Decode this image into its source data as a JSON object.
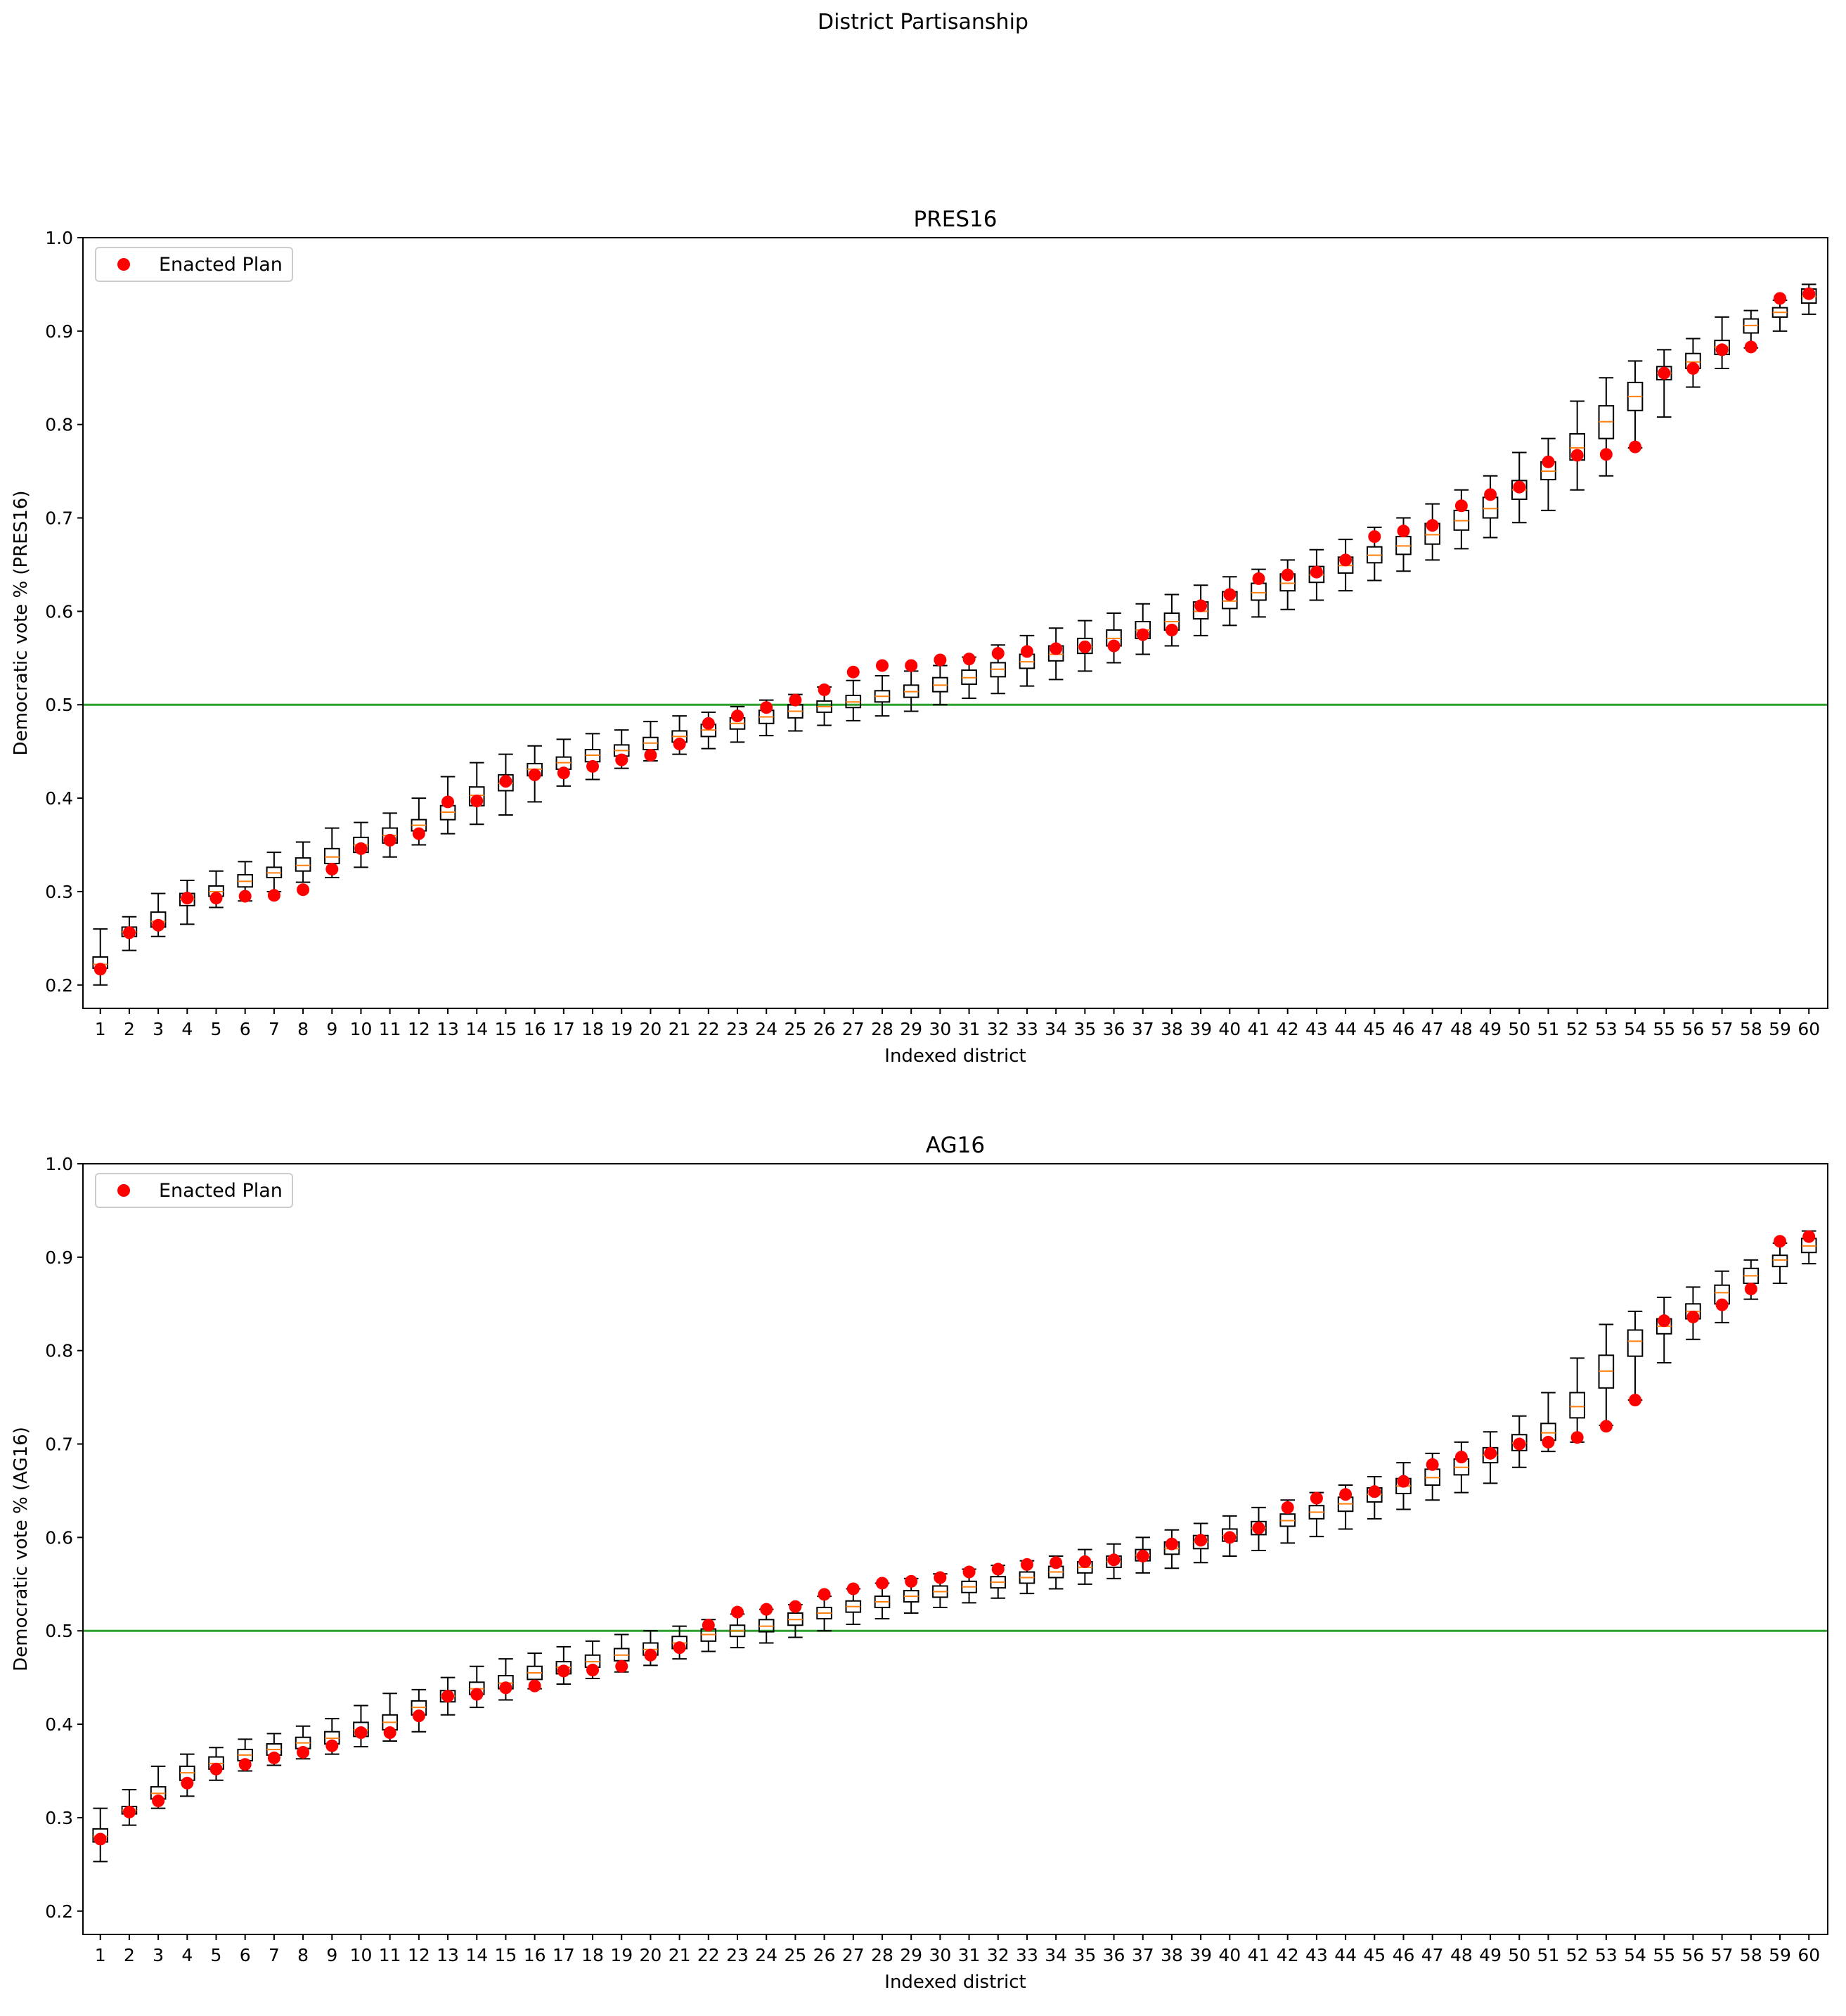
{
  "figure": {
    "title": "District Partisanship"
  },
  "chart_data": [
    {
      "type": "box",
      "title": "PRES16",
      "xlabel": "Indexed district",
      "ylabel": "Democratic vote % (PRES16)",
      "ylim": [
        0.175,
        1.0
      ],
      "yticks": [
        0.2,
        0.3,
        0.4,
        0.5,
        0.6,
        0.7,
        0.8,
        0.9,
        1.0
      ],
      "ytick_labels": [
        "0.2",
        "0.3",
        "0.4",
        "0.5",
        "0.6",
        "0.7",
        "0.8",
        "0.9",
        "1.0"
      ],
      "reference_line": {
        "y": 0.5,
        "color": "#2ca02c"
      },
      "legend": {
        "label": "Enacted Plan",
        "placement": "upper-left",
        "color": "#ff0000"
      },
      "categories": [
        "1",
        "2",
        "3",
        "4",
        "5",
        "6",
        "7",
        "8",
        "9",
        "10",
        "11",
        "12",
        "13",
        "14",
        "15",
        "16",
        "17",
        "18",
        "19",
        "20",
        "21",
        "22",
        "23",
        "24",
        "25",
        "26",
        "27",
        "28",
        "29",
        "30",
        "31",
        "32",
        "33",
        "34",
        "35",
        "36",
        "37",
        "38",
        "39",
        "40",
        "41",
        "42",
        "43",
        "44",
        "45",
        "46",
        "47",
        "48",
        "49",
        "50",
        "51",
        "52",
        "53",
        "54",
        "55",
        "56",
        "57",
        "58",
        "59",
        "60"
      ],
      "boxes": [
        [
          0.2,
          0.218,
          0.222,
          0.23,
          0.26
        ],
        [
          0.237,
          0.252,
          0.257,
          0.262,
          0.273
        ],
        [
          0.252,
          0.262,
          0.268,
          0.278,
          0.298
        ],
        [
          0.265,
          0.285,
          0.292,
          0.298,
          0.312
        ],
        [
          0.283,
          0.295,
          0.3,
          0.306,
          0.322
        ],
        [
          0.29,
          0.305,
          0.311,
          0.318,
          0.332
        ],
        [
          0.3,
          0.315,
          0.32,
          0.326,
          0.342
        ],
        [
          0.31,
          0.322,
          0.328,
          0.336,
          0.353
        ],
        [
          0.315,
          0.33,
          0.337,
          0.346,
          0.368
        ],
        [
          0.326,
          0.342,
          0.35,
          0.358,
          0.374
        ],
        [
          0.337,
          0.352,
          0.36,
          0.368,
          0.384
        ],
        [
          0.35,
          0.365,
          0.371,
          0.377,
          0.4
        ],
        [
          0.362,
          0.377,
          0.385,
          0.392,
          0.423
        ],
        [
          0.372,
          0.392,
          0.403,
          0.412,
          0.438
        ],
        [
          0.382,
          0.408,
          0.416,
          0.425,
          0.447
        ],
        [
          0.396,
          0.424,
          0.431,
          0.437,
          0.456
        ],
        [
          0.413,
          0.431,
          0.438,
          0.444,
          0.463
        ],
        [
          0.42,
          0.439,
          0.446,
          0.452,
          0.469
        ],
        [
          0.432,
          0.445,
          0.451,
          0.457,
          0.473
        ],
        [
          0.44,
          0.452,
          0.459,
          0.465,
          0.482
        ],
        [
          0.447,
          0.46,
          0.466,
          0.472,
          0.488
        ],
        [
          0.453,
          0.466,
          0.473,
          0.479,
          0.492
        ],
        [
          0.46,
          0.474,
          0.48,
          0.486,
          0.498
        ],
        [
          0.467,
          0.48,
          0.487,
          0.494,
          0.505
        ],
        [
          0.472,
          0.486,
          0.493,
          0.5,
          0.511
        ],
        [
          0.478,
          0.492,
          0.498,
          0.504,
          0.519
        ],
        [
          0.483,
          0.497,
          0.503,
          0.51,
          0.526
        ],
        [
          0.488,
          0.503,
          0.509,
          0.515,
          0.531
        ],
        [
          0.493,
          0.508,
          0.514,
          0.521,
          0.536
        ],
        [
          0.5,
          0.514,
          0.521,
          0.529,
          0.542
        ],
        [
          0.507,
          0.522,
          0.529,
          0.537,
          0.551
        ],
        [
          0.512,
          0.53,
          0.538,
          0.545,
          0.564
        ],
        [
          0.52,
          0.539,
          0.546,
          0.554,
          0.574
        ],
        [
          0.527,
          0.547,
          0.554,
          0.563,
          0.582
        ],
        [
          0.536,
          0.555,
          0.562,
          0.571,
          0.59
        ],
        [
          0.545,
          0.563,
          0.571,
          0.58,
          0.598
        ],
        [
          0.554,
          0.571,
          0.58,
          0.589,
          0.608
        ],
        [
          0.563,
          0.58,
          0.589,
          0.598,
          0.618
        ],
        [
          0.574,
          0.592,
          0.6,
          0.61,
          0.628
        ],
        [
          0.585,
          0.603,
          0.611,
          0.621,
          0.637
        ],
        [
          0.594,
          0.612,
          0.62,
          0.63,
          0.645
        ],
        [
          0.602,
          0.622,
          0.63,
          0.64,
          0.655
        ],
        [
          0.612,
          0.631,
          0.639,
          0.648,
          0.666
        ],
        [
          0.622,
          0.641,
          0.649,
          0.658,
          0.677
        ],
        [
          0.633,
          0.652,
          0.66,
          0.669,
          0.69
        ],
        [
          0.643,
          0.661,
          0.67,
          0.68,
          0.7
        ],
        [
          0.655,
          0.672,
          0.682,
          0.694,
          0.715
        ],
        [
          0.667,
          0.687,
          0.697,
          0.708,
          0.73
        ],
        [
          0.679,
          0.7,
          0.71,
          0.722,
          0.745
        ],
        [
          0.695,
          0.72,
          0.73,
          0.74,
          0.77
        ],
        [
          0.708,
          0.741,
          0.75,
          0.76,
          0.785
        ],
        [
          0.73,
          0.762,
          0.775,
          0.79,
          0.825
        ],
        [
          0.745,
          0.785,
          0.803,
          0.82,
          0.85
        ],
        [
          0.775,
          0.815,
          0.83,
          0.845,
          0.868
        ],
        [
          0.808,
          0.848,
          0.855,
          0.862,
          0.88
        ],
        [
          0.84,
          0.86,
          0.867,
          0.876,
          0.892
        ],
        [
          0.86,
          0.875,
          0.883,
          0.89,
          0.915
        ],
        [
          0.882,
          0.898,
          0.906,
          0.913,
          0.922
        ],
        [
          0.9,
          0.915,
          0.92,
          0.925,
          0.933
        ],
        [
          0.918,
          0.93,
          0.937,
          0.945,
          0.95
        ]
      ],
      "series": [
        {
          "name": "Enacted Plan",
          "values": [
            0.217,
            0.256,
            0.264,
            0.293,
            0.293,
            0.295,
            0.296,
            0.302,
            0.324,
            0.346,
            0.355,
            0.362,
            0.396,
            0.397,
            0.418,
            0.425,
            0.427,
            0.434,
            0.441,
            0.446,
            0.458,
            0.48,
            0.488,
            0.497,
            0.505,
            0.516,
            0.535,
            0.542,
            0.542,
            0.548,
            0.549,
            0.555,
            0.557,
            0.56,
            0.562,
            0.563,
            0.575,
            0.58,
            0.606,
            0.618,
            0.635,
            0.639,
            0.642,
            0.655,
            0.68,
            0.686,
            0.692,
            0.713,
            0.725,
            0.733,
            0.76,
            0.767,
            0.768,
            0.776,
            0.855,
            0.86,
            0.88,
            0.883,
            0.935,
            0.94
          ]
        }
      ]
    },
    {
      "type": "box",
      "title": "AG16",
      "xlabel": "Indexed district",
      "ylabel": "Democratic vote % (AG16)",
      "ylim": [
        0.175,
        1.0
      ],
      "yticks": [
        0.2,
        0.3,
        0.4,
        0.5,
        0.6,
        0.7,
        0.8,
        0.9,
        1.0
      ],
      "ytick_labels": [
        "0.2",
        "0.3",
        "0.4",
        "0.5",
        "0.6",
        "0.7",
        "0.8",
        "0.9",
        "1.0"
      ],
      "reference_line": {
        "y": 0.5,
        "color": "#2ca02c"
      },
      "legend": {
        "label": "Enacted Plan",
        "placement": "upper-left",
        "color": "#ff0000"
      },
      "categories": [
        "1",
        "2",
        "3",
        "4",
        "5",
        "6",
        "7",
        "8",
        "9",
        "10",
        "11",
        "12",
        "13",
        "14",
        "15",
        "16",
        "17",
        "18",
        "19",
        "20",
        "21",
        "22",
        "23",
        "24",
        "25",
        "26",
        "27",
        "28",
        "29",
        "30",
        "31",
        "32",
        "33",
        "34",
        "35",
        "36",
        "37",
        "38",
        "39",
        "40",
        "41",
        "42",
        "43",
        "44",
        "45",
        "46",
        "47",
        "48",
        "49",
        "50",
        "51",
        "52",
        "53",
        "54",
        "55",
        "56",
        "57",
        "58",
        "59",
        "60"
      ],
      "boxes": [
        [
          0.253,
          0.274,
          0.28,
          0.288,
          0.31
        ],
        [
          0.292,
          0.304,
          0.308,
          0.312,
          0.33
        ],
        [
          0.31,
          0.32,
          0.326,
          0.333,
          0.355
        ],
        [
          0.323,
          0.34,
          0.348,
          0.355,
          0.368
        ],
        [
          0.34,
          0.352,
          0.358,
          0.365,
          0.375
        ],
        [
          0.35,
          0.361,
          0.367,
          0.373,
          0.384
        ],
        [
          0.356,
          0.367,
          0.373,
          0.379,
          0.39
        ],
        [
          0.363,
          0.374,
          0.38,
          0.386,
          0.398
        ],
        [
          0.368,
          0.379,
          0.385,
          0.392,
          0.406
        ],
        [
          0.376,
          0.387,
          0.394,
          0.402,
          0.42
        ],
        [
          0.382,
          0.394,
          0.402,
          0.41,
          0.433
        ],
        [
          0.392,
          0.41,
          0.418,
          0.425,
          0.437
        ],
        [
          0.41,
          0.424,
          0.43,
          0.436,
          0.45
        ],
        [
          0.418,
          0.432,
          0.438,
          0.445,
          0.462
        ],
        [
          0.426,
          0.438,
          0.444,
          0.452,
          0.47
        ],
        [
          0.438,
          0.448,
          0.455,
          0.462,
          0.476
        ],
        [
          0.443,
          0.454,
          0.461,
          0.467,
          0.483
        ],
        [
          0.449,
          0.461,
          0.467,
          0.474,
          0.489
        ],
        [
          0.456,
          0.468,
          0.474,
          0.481,
          0.496
        ],
        [
          0.463,
          0.474,
          0.48,
          0.487,
          0.5
        ],
        [
          0.47,
          0.481,
          0.487,
          0.494,
          0.505
        ],
        [
          0.478,
          0.489,
          0.496,
          0.502,
          0.512
        ],
        [
          0.482,
          0.494,
          0.5,
          0.506,
          0.518
        ],
        [
          0.487,
          0.499,
          0.505,
          0.512,
          0.523
        ],
        [
          0.493,
          0.506,
          0.512,
          0.519,
          0.528
        ],
        [
          0.5,
          0.513,
          0.519,
          0.525,
          0.537
        ],
        [
          0.507,
          0.52,
          0.526,
          0.532,
          0.545
        ],
        [
          0.513,
          0.525,
          0.531,
          0.537,
          0.551
        ],
        [
          0.519,
          0.531,
          0.537,
          0.543,
          0.556
        ],
        [
          0.525,
          0.536,
          0.542,
          0.548,
          0.561
        ],
        [
          0.53,
          0.541,
          0.547,
          0.553,
          0.566
        ],
        [
          0.535,
          0.546,
          0.552,
          0.558,
          0.57
        ],
        [
          0.54,
          0.551,
          0.557,
          0.563,
          0.575
        ],
        [
          0.545,
          0.557,
          0.563,
          0.569,
          0.58
        ],
        [
          0.55,
          0.562,
          0.568,
          0.574,
          0.587
        ],
        [
          0.556,
          0.568,
          0.574,
          0.58,
          0.593
        ],
        [
          0.562,
          0.575,
          0.581,
          0.587,
          0.6
        ],
        [
          0.567,
          0.582,
          0.588,
          0.595,
          0.608
        ],
        [
          0.573,
          0.588,
          0.595,
          0.602,
          0.615
        ],
        [
          0.58,
          0.596,
          0.602,
          0.609,
          0.623
        ],
        [
          0.586,
          0.603,
          0.61,
          0.617,
          0.632
        ],
        [
          0.594,
          0.612,
          0.618,
          0.625,
          0.64
        ],
        [
          0.601,
          0.62,
          0.627,
          0.634,
          0.648
        ],
        [
          0.609,
          0.628,
          0.636,
          0.643,
          0.656
        ],
        [
          0.62,
          0.638,
          0.646,
          0.653,
          0.665
        ],
        [
          0.63,
          0.647,
          0.655,
          0.663,
          0.68
        ],
        [
          0.64,
          0.656,
          0.664,
          0.673,
          0.69
        ],
        [
          0.648,
          0.667,
          0.675,
          0.684,
          0.702
        ],
        [
          0.658,
          0.68,
          0.688,
          0.696,
          0.713
        ],
        [
          0.675,
          0.693,
          0.701,
          0.71,
          0.73
        ],
        [
          0.692,
          0.704,
          0.712,
          0.722,
          0.755
        ],
        [
          0.702,
          0.728,
          0.74,
          0.755,
          0.792
        ],
        [
          0.72,
          0.76,
          0.778,
          0.795,
          0.828
        ],
        [
          0.747,
          0.794,
          0.81,
          0.822,
          0.842
        ],
        [
          0.787,
          0.818,
          0.826,
          0.834,
          0.857
        ],
        [
          0.812,
          0.834,
          0.842,
          0.85,
          0.868
        ],
        [
          0.83,
          0.85,
          0.862,
          0.87,
          0.885
        ],
        [
          0.855,
          0.872,
          0.88,
          0.888,
          0.897
        ],
        [
          0.872,
          0.89,
          0.897,
          0.902,
          0.915
        ],
        [
          0.893,
          0.905,
          0.912,
          0.92,
          0.928
        ]
      ],
      "series": [
        {
          "name": "Enacted Plan",
          "values": [
            0.277,
            0.306,
            0.318,
            0.337,
            0.352,
            0.357,
            0.364,
            0.37,
            0.377,
            0.391,
            0.391,
            0.409,
            0.43,
            0.432,
            0.439,
            0.441,
            0.457,
            0.458,
            0.462,
            0.474,
            0.482,
            0.506,
            0.52,
            0.523,
            0.526,
            0.539,
            0.545,
            0.551,
            0.553,
            0.557,
            0.563,
            0.566,
            0.571,
            0.573,
            0.574,
            0.576,
            0.58,
            0.593,
            0.597,
            0.6,
            0.61,
            0.632,
            0.642,
            0.646,
            0.649,
            0.66,
            0.678,
            0.686,
            0.69,
            0.7,
            0.702,
            0.707,
            0.719,
            0.747,
            0.832,
            0.836,
            0.849,
            0.866,
            0.917,
            0.922
          ]
        }
      ]
    }
  ]
}
